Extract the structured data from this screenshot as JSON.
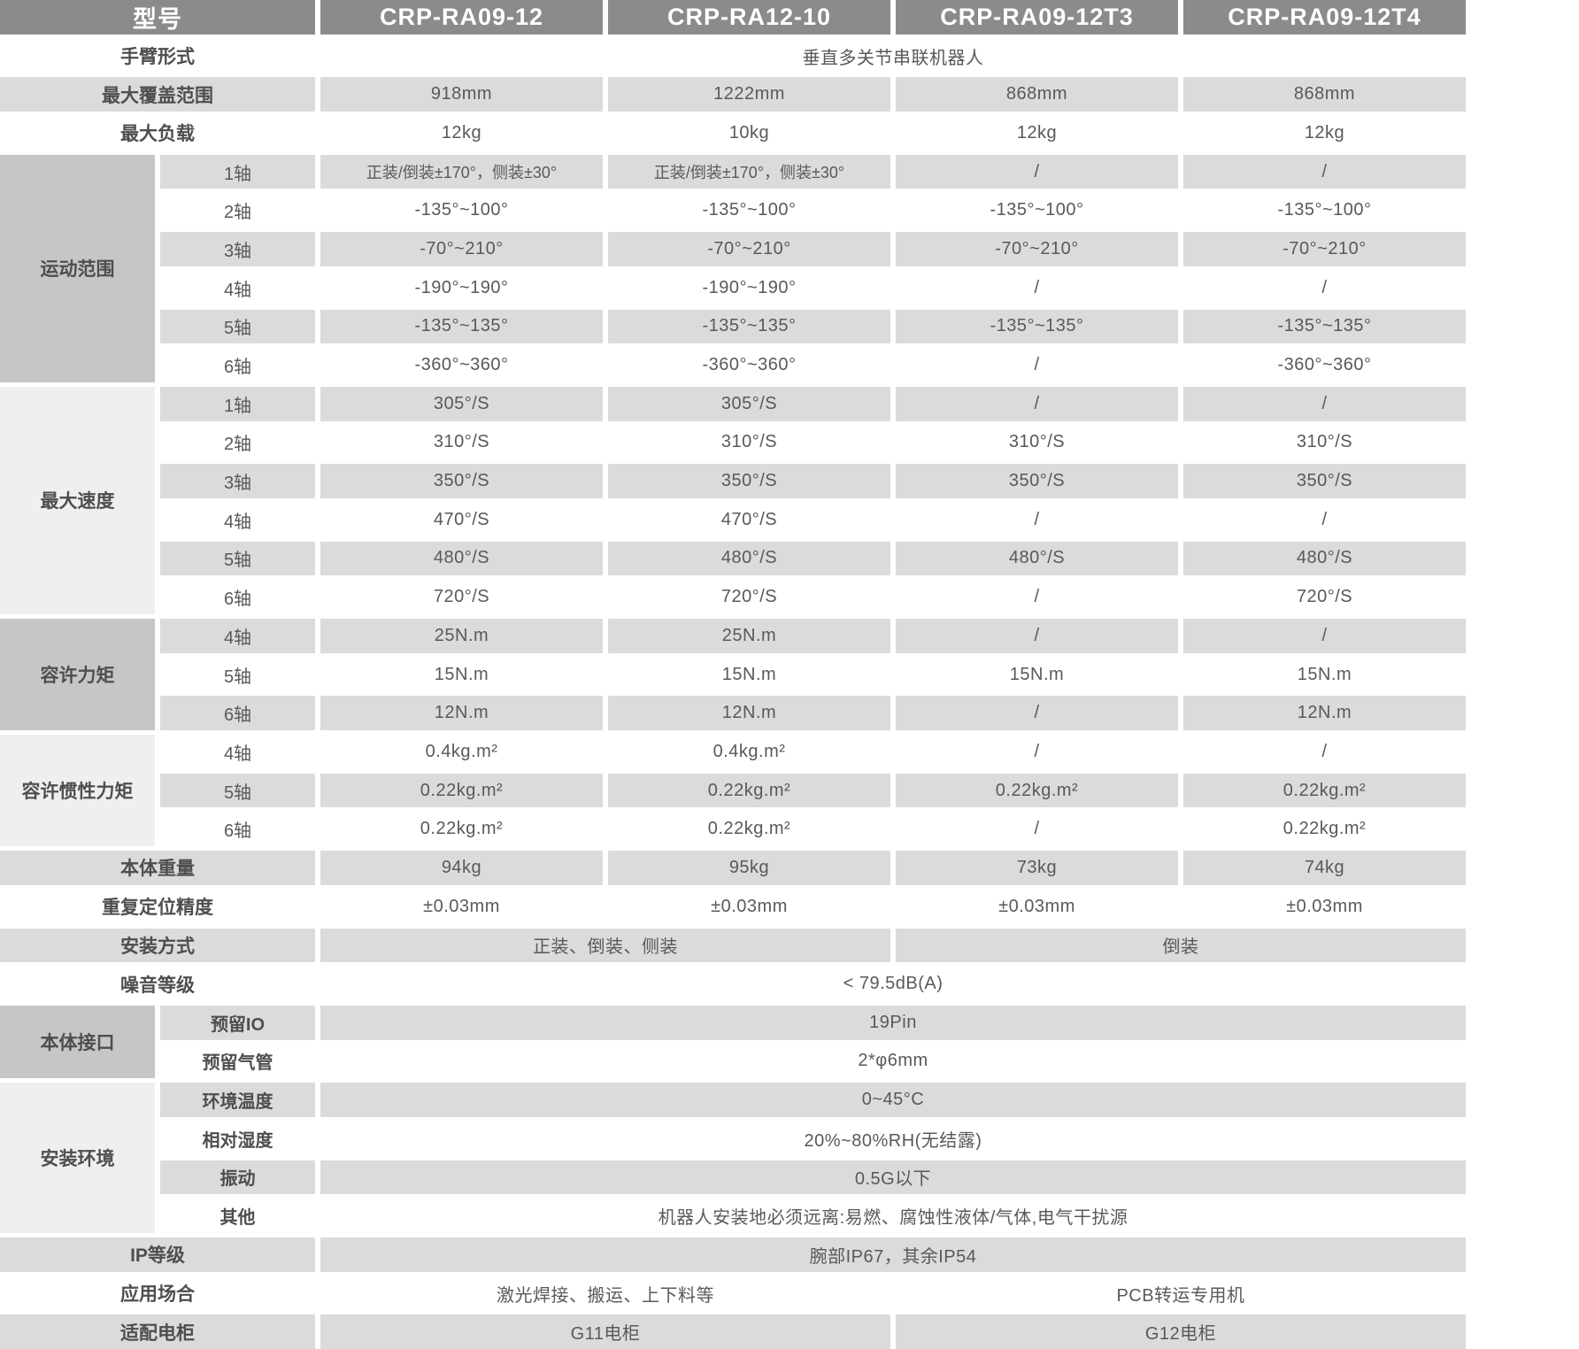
{
  "colors": {
    "header_bg": "#8b8b8b",
    "header_text": "#ffffff",
    "row_stripe": "#dbdbdb",
    "group_cell_dark": "#c6c6c6",
    "group_cell_light": "#efefef",
    "text": "#58595b"
  },
  "table": {
    "header": {
      "model_label": "型号",
      "models": [
        "CRP-RA09-12",
        "CRP-RA12-10",
        "CRP-RA09-12T3",
        "CRP-RA09-12T4"
      ]
    },
    "arm_type": {
      "label": "手臂形式",
      "value": "垂直多关节串联机器人"
    },
    "max_reach": {
      "label": "最大覆盖范围",
      "values": [
        "918mm",
        "1222mm",
        "868mm",
        "868mm"
      ]
    },
    "max_payload": {
      "label": "最大负载",
      "values": [
        "12kg",
        "10kg",
        "12kg",
        "12kg"
      ]
    },
    "motion_range": {
      "label": "运动范围",
      "rows": [
        {
          "axis": "1轴",
          "values": [
            "正装/倒装±170°，侧装±30°",
            "正装/倒装±170°，侧装±30°",
            "/",
            "/"
          ]
        },
        {
          "axis": "2轴",
          "values": [
            "-135°~100°",
            "-135°~100°",
            "-135°~100°",
            "-135°~100°"
          ]
        },
        {
          "axis": "3轴",
          "values": [
            "-70°~210°",
            "-70°~210°",
            "-70°~210°",
            "-70°~210°"
          ]
        },
        {
          "axis": "4轴",
          "values": [
            "-190°~190°",
            "-190°~190°",
            "/",
            "/"
          ]
        },
        {
          "axis": "5轴",
          "values": [
            "-135°~135°",
            "-135°~135°",
            "-135°~135°",
            "-135°~135°"
          ]
        },
        {
          "axis": "6轴",
          "values": [
            "-360°~360°",
            "-360°~360°",
            "/",
            "-360°~360°"
          ]
        }
      ]
    },
    "max_speed": {
      "label": "最大速度",
      "rows": [
        {
          "axis": "1轴",
          "values": [
            "305°/S",
            "305°/S",
            "/",
            "/"
          ]
        },
        {
          "axis": "2轴",
          "values": [
            "310°/S",
            "310°/S",
            "310°/S",
            "310°/S"
          ]
        },
        {
          "axis": "3轴",
          "values": [
            "350°/S",
            "350°/S",
            "350°/S",
            "350°/S"
          ]
        },
        {
          "axis": "4轴",
          "values": [
            "470°/S",
            "470°/S",
            "/",
            "/"
          ]
        },
        {
          "axis": "5轴",
          "values": [
            "480°/S",
            "480°/S",
            "480°/S",
            "480°/S"
          ]
        },
        {
          "axis": "6轴",
          "values": [
            "720°/S",
            "720°/S",
            "/",
            "720°/S"
          ]
        }
      ]
    },
    "allowable_torque": {
      "label": "容许力矩",
      "rows": [
        {
          "axis": "4轴",
          "values": [
            "25N.m",
            "25N.m",
            "/",
            "/"
          ]
        },
        {
          "axis": "5轴",
          "values": [
            "15N.m",
            "15N.m",
            "15N.m",
            "15N.m"
          ]
        },
        {
          "axis": "6轴",
          "values": [
            "12N.m",
            "12N.m",
            "/",
            "12N.m"
          ]
        }
      ]
    },
    "allowable_inertia": {
      "label": "容许惯性力矩",
      "rows": [
        {
          "axis": "4轴",
          "values": [
            "0.4kg.m²",
            "0.4kg.m²",
            "/",
            "/"
          ]
        },
        {
          "axis": "5轴",
          "values": [
            "0.22kg.m²",
            "0.22kg.m²",
            "0.22kg.m²",
            "0.22kg.m²"
          ]
        },
        {
          "axis": "6轴",
          "values": [
            "0.22kg.m²",
            "0.22kg.m²",
            "/",
            "0.22kg.m²"
          ]
        }
      ]
    },
    "body_weight": {
      "label": "本体重量",
      "values": [
        "94kg",
        "95kg",
        "73kg",
        "74kg"
      ]
    },
    "repeatability": {
      "label": "重复定位精度",
      "values": [
        "±0.03mm",
        "±0.03mm",
        "±0.03mm",
        "±0.03mm"
      ]
    },
    "mounting": {
      "label": "安装方式",
      "left_value": "正装、倒装、侧装",
      "right_value": "倒装"
    },
    "noise": {
      "label": "噪音等级",
      "value": "< 79.5dB(A)"
    },
    "body_interface": {
      "label": "本体接口",
      "rows": [
        {
          "name": "预留IO",
          "value": "19Pin"
        },
        {
          "name": "预留气管",
          "value": "2*φ6mm"
        }
      ]
    },
    "environment": {
      "label": "安装环境",
      "rows": [
        {
          "name": "环境温度",
          "value": "0~45°C"
        },
        {
          "name": "相对湿度",
          "value": "20%~80%RH(无结露)"
        },
        {
          "name": "振动",
          "value": "0.5G以下"
        },
        {
          "name": "其他",
          "value": "机器人安装地必须远离:易燃、腐蚀性液体/气体,电气干扰源"
        }
      ]
    },
    "ip_rating": {
      "label": "IP等级",
      "value": "腕部IP67，其余IP54"
    },
    "application": {
      "label": "应用场合",
      "left_value": "激光焊接、搬运、上下料等",
      "right_value": "PCB转运专用机"
    },
    "cabinet": {
      "label": "适配电柜",
      "left_value": "G11电柜",
      "right_value": "G12电柜"
    }
  }
}
